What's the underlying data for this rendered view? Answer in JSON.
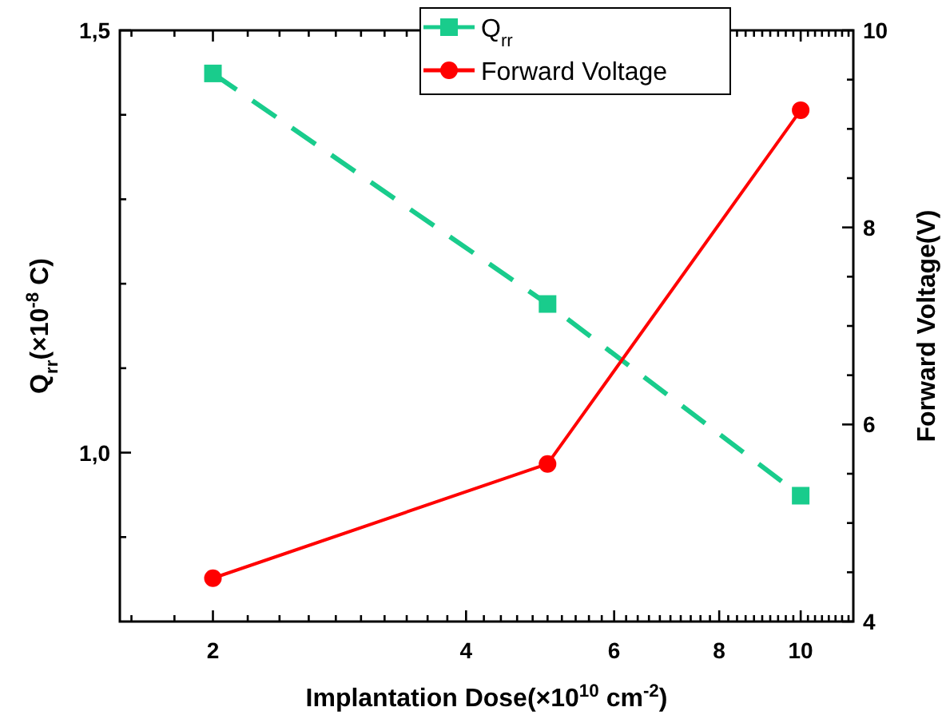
{
  "chart_data": {
    "type": "line",
    "xlabel": "Implantation Dose(×10$^{10}$ cm$^{-2}$)",
    "ylabel": "Q$_{rr}$(×10$^{-8}$ C)",
    "y2label": "Forward Voltage(V)",
    "log": "x",
    "x": [
      2,
      5,
      10
    ],
    "xlim": [
      1.55,
      11.55
    ],
    "xticks": [
      {
        "value": 1.6,
        "label": null
      },
      {
        "value": 1.8,
        "label": null
      },
      2,
      {
        "value": 2.2,
        "label": null
      },
      {
        "value": 2.4,
        "label": null
      },
      {
        "value": 2.6,
        "label": null
      },
      {
        "value": 2.8,
        "label": null
      },
      {
        "value": 3,
        "label": null
      },
      {
        "value": 3.2,
        "label": null
      },
      {
        "value": 3.4,
        "label": null
      },
      {
        "value": 3.6,
        "label": null
      },
      {
        "value": 3.8,
        "label": null
      },
      4,
      {
        "value": 4.2,
        "label": null
      },
      {
        "value": 4.4,
        "label": null
      },
      {
        "value": 4.6,
        "label": null
      },
      {
        "value": 4.8,
        "label": null
      },
      {
        "value": 5,
        "label": null
      },
      {
        "value": 5.2,
        "label": null
      },
      {
        "value": 5.4,
        "label": null
      },
      {
        "value": 5.6,
        "label": null
      },
      {
        "value": 5.8,
        "label": null
      },
      6,
      {
        "value": 6.2,
        "label": null
      },
      {
        "value": 6.4,
        "label": null
      },
      {
        "value": 6.6,
        "label": null
      },
      {
        "value": 6.8,
        "label": null
      },
      {
        "value": 7,
        "label": null
      },
      {
        "value": 7.2,
        "label": null
      },
      {
        "value": 7.4,
        "label": null
      },
      {
        "value": 7.6,
        "label": null
      },
      {
        "value": 7.8,
        "label": null
      },
      8,
      {
        "value": 8.2,
        "label": null
      },
      {
        "value": 8.4,
        "label": null
      },
      {
        "value": 8.6,
        "label": null
      },
      {
        "value": 8.8,
        "label": null
      },
      {
        "value": 9,
        "label": null
      },
      {
        "value": 9.2,
        "label": null
      },
      {
        "value": 9.4,
        "label": null
      },
      {
        "value": 9.6,
        "label": null
      },
      {
        "value": 9.8,
        "label": null
      },
      10,
      {
        "value": 10.2,
        "label": null
      },
      {
        "value": 10.4,
        "label": null
      },
      {
        "value": 10.6,
        "label": null
      },
      {
        "value": 10.8,
        "label": null
      },
      {
        "value": 11,
        "label": null
      },
      {
        "value": 11.2,
        "label": null
      },
      {
        "value": 11.4,
        "label": null
      }
    ],
    "ylim": [
      0.8,
      1.5
    ],
    "yticks": [
      {
        "value": 0.9,
        "label": null
      },
      {
        "value": 1.0,
        "label": "1,0"
      },
      {
        "value": 1.1,
        "label": null
      },
      {
        "value": 1.2,
        "label": null
      },
      {
        "value": 1.3,
        "label": null
      },
      {
        "value": 1.4,
        "label": null
      },
      {
        "value": 1.5,
        "label": "1,5"
      }
    ],
    "y2lim": [
      4,
      10
    ],
    "y2ticks": [
      4,
      {
        "value": 4.5,
        "label": null
      },
      {
        "value": 5,
        "label": null
      },
      {
        "value": 5.5,
        "label": null
      },
      6,
      {
        "value": 6.5,
        "label": null
      },
      {
        "value": 7,
        "label": null
      },
      {
        "value": 7.5,
        "label": null
      },
      8,
      {
        "value": 8.5,
        "label": null
      },
      {
        "value": 9,
        "label": null
      },
      {
        "value": 9.5,
        "label": null
      },
      10
    ],
    "grid": false,
    "legend": "top",
    "series": [
      {
        "name": "Q$_{rr}$",
        "color": "#19cc8c",
        "values": [
          1.449,
          1.176,
          0.949
        ],
        "marker": "square",
        "line_style": "dashed"
      },
      {
        "name": "Forward Voltage",
        "color": "#ff0000",
        "values": [
          4.44,
          5.6,
          9.19
        ],
        "axis": "y2",
        "marker": "circle",
        "line_style": "solid"
      }
    ]
  }
}
